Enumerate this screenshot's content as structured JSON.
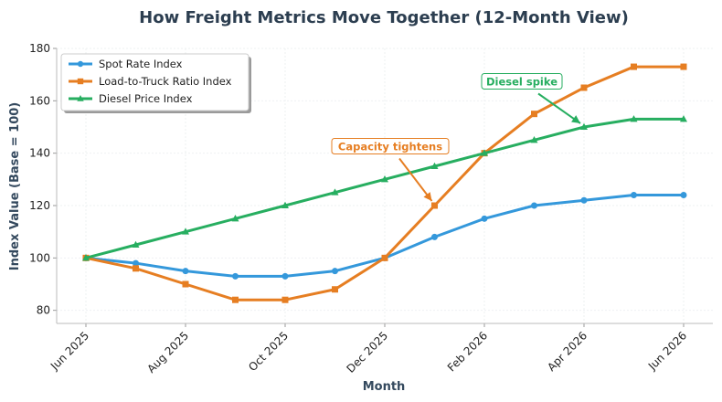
{
  "chart_data": {
    "type": "line",
    "title": "How Freight Metrics Move Together (12-Month View)",
    "xlabel": "Month",
    "ylabel": "Index Value (Base = 100)",
    "x": [
      "2025-06",
      "2025-07",
      "2025-08",
      "2025-09",
      "2025-10",
      "2025-11",
      "2025-12",
      "2026-01",
      "2026-02",
      "2026-03",
      "2026-04",
      "2026-05",
      "2026-06"
    ],
    "xtick_labels": [
      "Jun 2025",
      "Aug 2025",
      "Oct 2025",
      "Dec 2025",
      "Feb 2026",
      "Apr 2026",
      "Jun 2026"
    ],
    "yticks": [
      80,
      100,
      120,
      140,
      160,
      180
    ],
    "ylim": [
      75,
      180
    ],
    "grid": true,
    "legend_position": "top-left",
    "series": [
      {
        "name": "Spot Rate Index",
        "color": "#3498db",
        "marker": "circle",
        "values": [
          100,
          98,
          95,
          93,
          93,
          95,
          100,
          108,
          115,
          120,
          122,
          124,
          124
        ]
      },
      {
        "name": "Load-to-Truck Ratio Index",
        "color": "#e67e22",
        "marker": "square",
        "values": [
          100,
          96,
          90,
          84,
          84,
          88,
          100,
          120,
          140,
          155,
          165,
          173,
          173
        ]
      },
      {
        "name": "Diesel Price Index",
        "color": "#27ae60",
        "marker": "triangle",
        "values": [
          100,
          105,
          110,
          115,
          120,
          125,
          130,
          135,
          140,
          145,
          150,
          153,
          153
        ]
      }
    ],
    "annotations": [
      {
        "text": "Capacity tightens",
        "color": "#e67e22",
        "point_x": "2026-01",
        "point_y": 120
      },
      {
        "text": "Diesel spike",
        "color": "#27ae60",
        "point_x": "2026-04",
        "point_y": 150
      }
    ]
  }
}
